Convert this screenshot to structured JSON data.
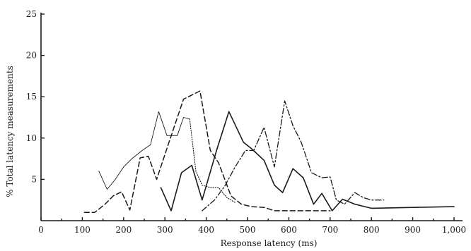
{
  "chart_data": {
    "type": "line",
    "xlabel": "Response latency (ms)",
    "ylabel": "% Total latency measurements",
    "xlim": [
      0,
      1000
    ],
    "ylim": [
      0,
      25
    ],
    "x_ticks": [
      {
        "value": 0,
        "label": "0"
      },
      {
        "value": 100,
        "label": "100"
      },
      {
        "value": 200,
        "label": "200"
      },
      {
        "value": 300,
        "label": "300"
      },
      {
        "value": 400,
        "label": "400"
      },
      {
        "value": 500,
        "label": "500"
      },
      {
        "value": 600,
        "label": "600"
      },
      {
        "value": 700,
        "label": "700"
      },
      {
        "value": 800,
        "label": "800"
      },
      {
        "value": 900,
        "label": "900"
      },
      {
        "value": 1000,
        "label": "1,000"
      }
    ],
    "y_ticks": [
      {
        "value": 5,
        "label": "5"
      },
      {
        "value": 10,
        "label": "10"
      },
      {
        "value": 15,
        "label": "15"
      },
      {
        "value": 20,
        "label": "20"
      },
      {
        "value": 25,
        "label": "25"
      }
    ],
    "grid": false,
    "series": [
      {
        "style": "thin-solid",
        "color": "#1a1a1a",
        "points": [
          [
            140,
            6
          ],
          [
            160,
            3.8
          ],
          [
            180,
            5
          ],
          [
            200,
            6.5
          ],
          [
            220,
            7.5
          ],
          [
            245,
            8.5
          ],
          [
            265,
            9.2
          ],
          [
            285,
            13.2
          ],
          [
            305,
            10.3
          ],
          [
            330,
            10.3
          ],
          [
            345,
            12.5
          ],
          [
            360,
            12.3
          ]
        ]
      },
      {
        "style": "dotted",
        "color": "#555555",
        "points": [
          [
            360,
            12.3
          ],
          [
            375,
            6
          ],
          [
            390,
            4.3
          ],
          [
            410,
            4
          ],
          [
            430,
            4
          ],
          [
            450,
            2.8
          ],
          [
            470,
            2.2
          ]
        ]
      },
      {
        "style": "dashed",
        "color": "#1a1a1a",
        "points": [
          [
            105,
            1
          ],
          [
            130,
            1
          ],
          [
            155,
            2
          ],
          [
            175,
            3
          ],
          [
            195,
            3.5
          ],
          [
            215,
            1.3
          ],
          [
            240,
            7.6
          ],
          [
            260,
            7.8
          ],
          [
            280,
            5
          ],
          [
            310,
            9.5
          ],
          [
            345,
            14.7
          ],
          [
            385,
            15.7
          ],
          [
            410,
            8.5
          ],
          [
            430,
            7
          ],
          [
            460,
            3
          ],
          [
            485,
            2
          ],
          [
            510,
            1.7
          ],
          [
            540,
            1.6
          ],
          [
            565,
            1.2
          ],
          [
            590,
            1.2
          ],
          [
            620,
            1.2
          ],
          [
            650,
            1.2
          ],
          [
            680,
            1.2
          ],
          [
            700,
            1.2
          ]
        ]
      },
      {
        "style": "solid",
        "color": "#1a1a1a",
        "points": [
          [
            290,
            4
          ],
          [
            315,
            1.2
          ],
          [
            340,
            5.8
          ],
          [
            365,
            6.7
          ],
          [
            390,
            2.5
          ],
          [
            425,
            8.5
          ],
          [
            455,
            13.2
          ],
          [
            490,
            9.5
          ],
          [
            510,
            8.7
          ],
          [
            540,
            7.3
          ],
          [
            565,
            4.3
          ],
          [
            585,
            3.4
          ],
          [
            610,
            6.3
          ],
          [
            635,
            5.2
          ],
          [
            660,
            2
          ],
          [
            680,
            3.3
          ],
          [
            705,
            1.2
          ],
          [
            730,
            2.6
          ],
          [
            760,
            2
          ],
          [
            800,
            1.5
          ],
          [
            900,
            1.6
          ],
          [
            1000,
            1.7
          ]
        ]
      },
      {
        "style": "dash-dot",
        "color": "#1a1a1a",
        "points": [
          [
            390,
            1.2
          ],
          [
            420,
            2.5
          ],
          [
            445,
            4.2
          ],
          [
            470,
            6.5
          ],
          [
            495,
            8.5
          ],
          [
            515,
            8.5
          ],
          [
            540,
            11.3
          ],
          [
            565,
            6.5
          ],
          [
            590,
            14.5
          ],
          [
            610,
            11.5
          ],
          [
            630,
            9.5
          ],
          [
            655,
            5.8
          ],
          [
            680,
            5.2
          ],
          [
            700,
            5.3
          ],
          [
            715,
            2.5
          ],
          [
            735,
            2
          ],
          [
            760,
            3.4
          ],
          [
            780,
            2.8
          ],
          [
            800,
            2.5
          ],
          [
            830,
            2.5
          ]
        ]
      }
    ]
  }
}
